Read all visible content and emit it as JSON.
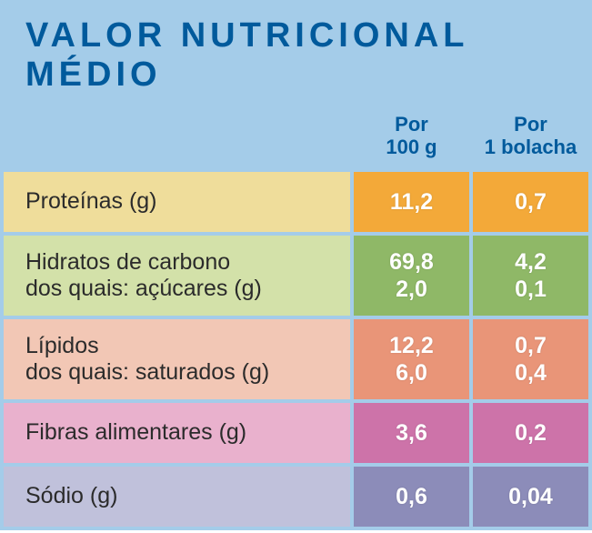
{
  "title": "VALOR NUTRICIONAL MÉDIO",
  "header_bg": "#a4cce9",
  "title_color": "#005a9c",
  "header_text_color": "#005a9c",
  "value_text_color": "#ffffff",
  "label_text_color": "#2b2b2b",
  "columns": [
    {
      "line1": "Por",
      "line2": "100 g"
    },
    {
      "line1": "Por",
      "line2": "1 bolacha"
    }
  ],
  "rows": [
    {
      "label_lines": [
        "Proteínas (g)"
      ],
      "v1_lines": [
        "11,2"
      ],
      "v2_lines": [
        "0,7"
      ],
      "label_bg": "#efdd9b",
      "value_bg": "#f3a939"
    },
    {
      "label_lines": [
        "Hidratos de carbono",
        "dos quais: açúcares (g)"
      ],
      "v1_lines": [
        "69,8",
        "2,0"
      ],
      "v2_lines": [
        "4,2",
        "0,1"
      ],
      "label_bg": "#d3e1a9",
      "value_bg": "#8fb867"
    },
    {
      "label_lines": [
        "Lípidos",
        "dos quais: saturados (g)"
      ],
      "v1_lines": [
        "12,2",
        "6,0"
      ],
      "v2_lines": [
        "0,7",
        "0,4"
      ],
      "label_bg": "#f2c7b5",
      "value_bg": "#e99578"
    },
    {
      "label_lines": [
        "Fibras alimentares (g)"
      ],
      "v1_lines": [
        "3,6"
      ],
      "v2_lines": [
        "0,2"
      ],
      "label_bg": "#e9b1cd",
      "value_bg": "#cd73a9"
    },
    {
      "label_lines": [
        "Sódio (g)"
      ],
      "v1_lines": [
        "0,6"
      ],
      "v2_lines": [
        "0,04"
      ],
      "label_bg": "#c0c1db",
      "value_bg": "#8c8cb9"
    }
  ]
}
